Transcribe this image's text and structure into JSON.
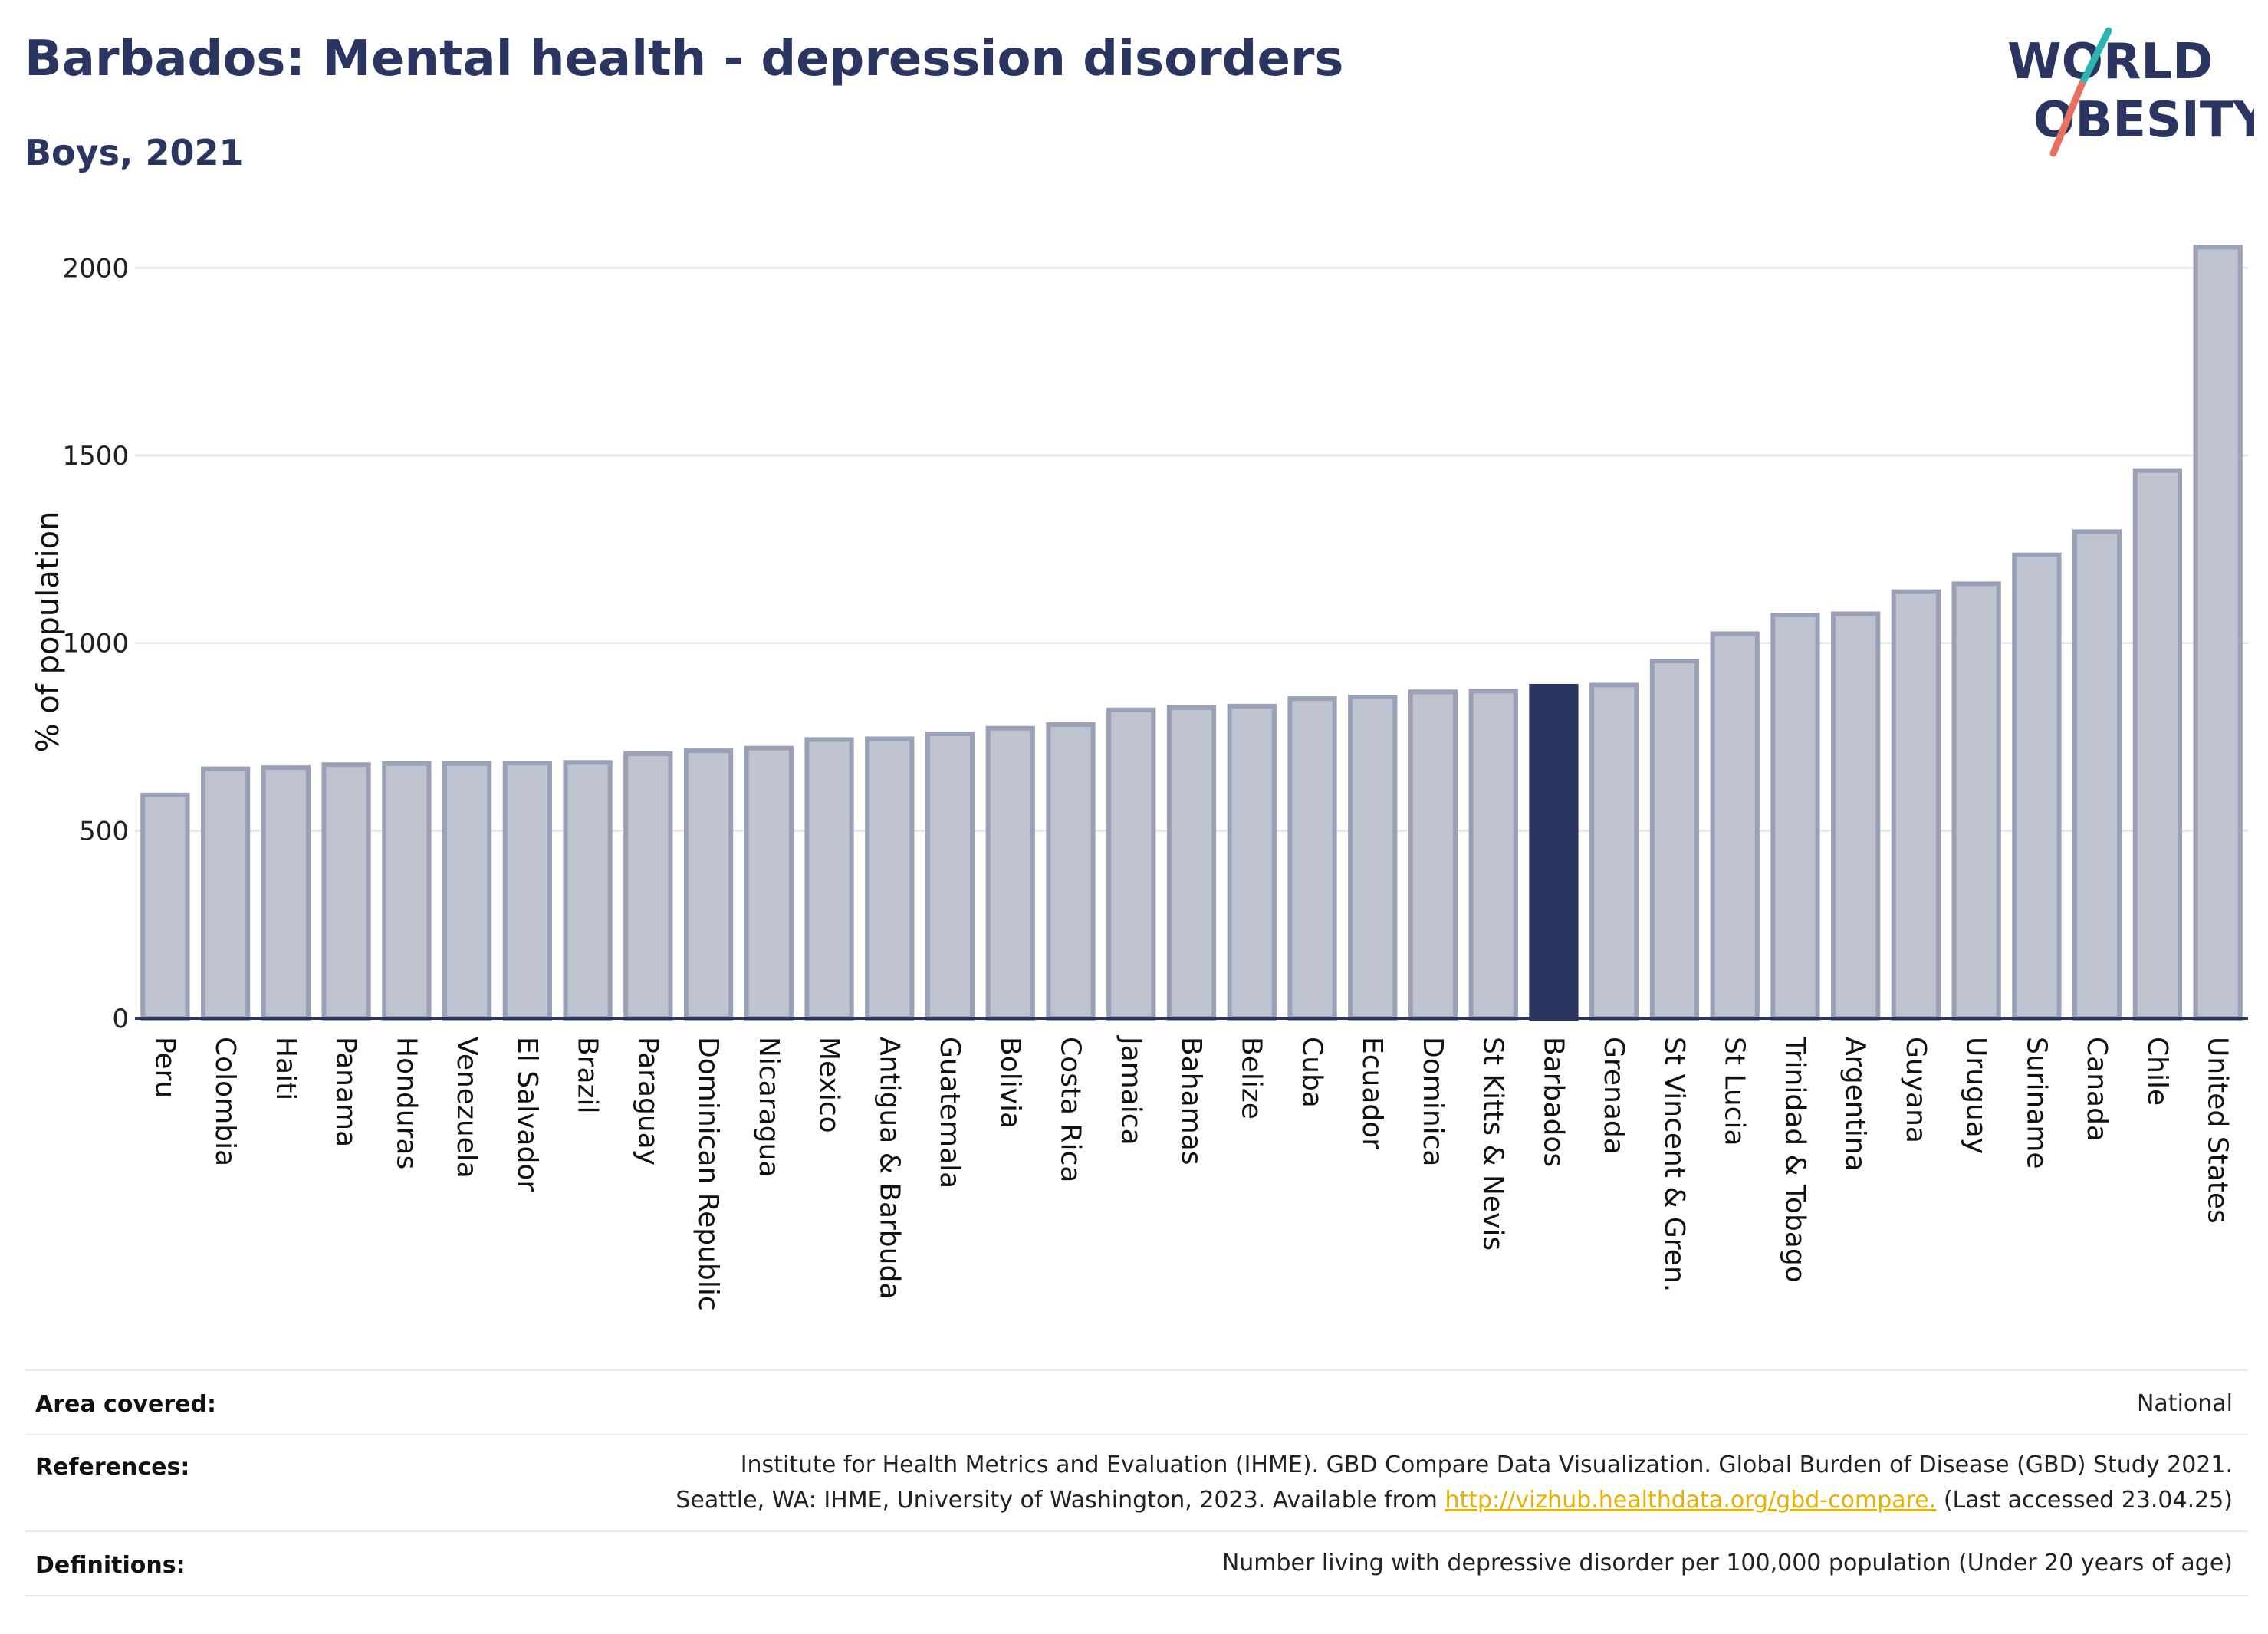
{
  "header": {
    "title": "Barbados: Mental health - depression disorders",
    "subtitle": "Boys, 2021"
  },
  "logo": {
    "text_line1": "WORLD",
    "text_line2": "OBESITY",
    "colors": {
      "text": "#2b3561",
      "slash_top": "#2bb5b0",
      "slash_bottom": "#e8705e"
    }
  },
  "colors": {
    "bar": "#bfc3d0",
    "bar_border": "#9aa0b6",
    "highlight": "#2b3561",
    "grid": "#e6e8ee",
    "axis": "#2b3561",
    "link": "#e8b000"
  },
  "chart_data": {
    "type": "bar",
    "ylabel": "% of population",
    "xlabel": "",
    "ylim": [
      0,
      2060
    ],
    "yticks": [
      0,
      500,
      1000,
      1500,
      2000
    ],
    "grid": true,
    "highlight": "Barbados",
    "categories": [
      "Peru",
      "Colombia",
      "Haiti",
      "Panama",
      "Honduras",
      "Venezuela",
      "El Salvador",
      "Brazil",
      "Paraguay",
      "Dominican Republic",
      "Nicaragua",
      "Mexico",
      "Antigua & Barbuda",
      "Guatemala",
      "Bolivia",
      "Costa Rica",
      "Jamaica",
      "Bahamas",
      "Belize",
      "Cuba",
      "Ecuador",
      "Dominica",
      "St Kitts & Nevis",
      "Barbados",
      "Grenada",
      "St Vincent & Gren.",
      "St Lucia",
      "Trinidad & Tobago",
      "Argentina",
      "Guyana",
      "Uruguay",
      "Suriname",
      "Canada",
      "Chile",
      "United States"
    ],
    "values": [
      595,
      665,
      668,
      676,
      679,
      679,
      680,
      682,
      705,
      713,
      720,
      743,
      745,
      758,
      773,
      783,
      822,
      828,
      832,
      852,
      856,
      870,
      872,
      885,
      888,
      952,
      1025,
      1075,
      1078,
      1137,
      1158,
      1235,
      1297,
      1460,
      2055
    ]
  },
  "footer": {
    "area_label": "Area covered:",
    "area_value": "National",
    "references_label": "References:",
    "references_line1": "Institute for Health Metrics and Evaluation (IHME). GBD Compare Data Visualization. Global Burden of Disease (GBD) Study 2021.",
    "references_line2_prefix": "Seattle, WA: IHME, University of Washington, 2023. Available from ",
    "references_link": "http://vizhub.healthdata.org/gbd-compare.",
    "references_line2_suffix": " (Last accessed 23.04.25)",
    "definitions_label": "Definitions:",
    "definitions_value": "Number living with depressive disorder per 100,000 population (Under 20 years of age)"
  }
}
